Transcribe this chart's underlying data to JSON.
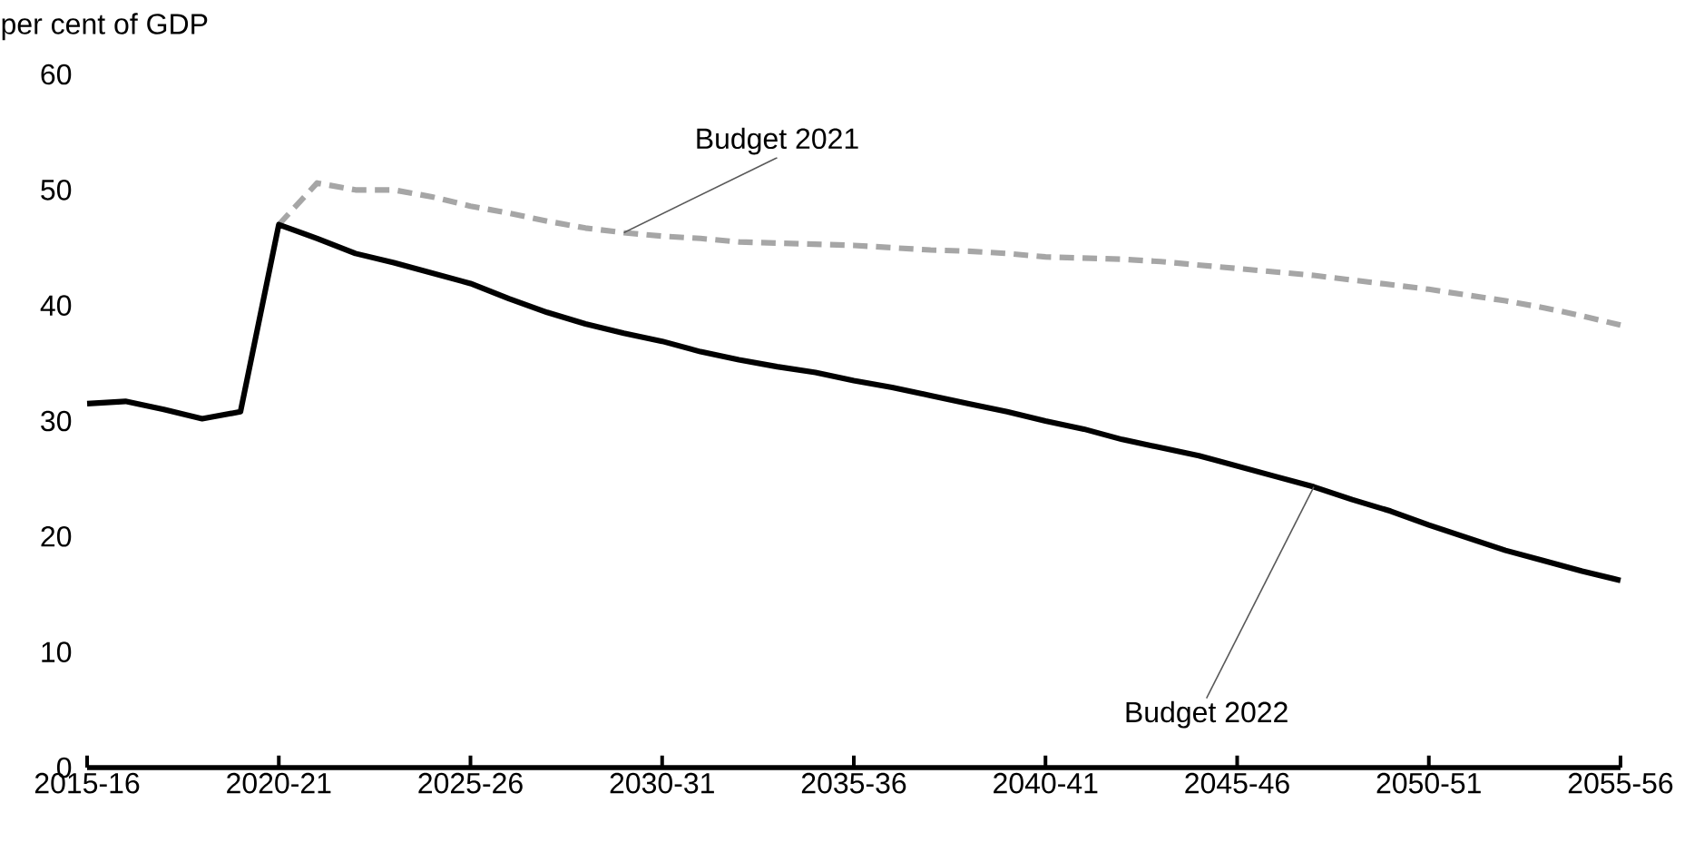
{
  "chart_data": {
    "type": "line",
    "ylabel": "per cent of GDP",
    "categories": [
      "2015-16",
      null,
      null,
      null,
      null,
      "2020-21",
      null,
      null,
      null,
      null,
      "2025-26",
      null,
      null,
      null,
      null,
      "2030-31",
      null,
      null,
      null,
      null,
      "2035-36",
      null,
      null,
      null,
      null,
      "2040-41",
      null,
      null,
      null,
      null,
      "2045-46",
      null,
      null,
      null,
      null,
      "2050-51",
      null,
      null,
      null,
      null,
      "2055-56"
    ],
    "ylim": [
      0,
      60
    ],
    "yticks": [
      0,
      10,
      20,
      30,
      40,
      50,
      60
    ],
    "grid": false,
    "marker": "none",
    "series": [
      {
        "name": "Budget 2021",
        "color": "#a6a6a6",
        "line_style": "dashed",
        "values": [
          null,
          null,
          null,
          null,
          null,
          47.0,
          50.6,
          50.0,
          50.0,
          49.4,
          48.6,
          48.0,
          47.3,
          46.7,
          46.3,
          46.0,
          45.8,
          45.5,
          45.4,
          45.3,
          45.2,
          45.0,
          44.8,
          44.7,
          44.5,
          44.2,
          44.1,
          44.0,
          43.8,
          43.5,
          43.2,
          42.9,
          42.6,
          42.2,
          41.8,
          41.4,
          40.9,
          40.4,
          39.8,
          39.1,
          38.3
        ]
      },
      {
        "name": "Budget 2022",
        "color": "#000000",
        "line_style": "solid",
        "values": [
          31.5,
          31.7,
          31.0,
          30.2,
          30.8,
          47.0,
          45.8,
          44.5,
          43.7,
          42.8,
          41.9,
          40.6,
          39.4,
          38.4,
          37.6,
          36.9,
          36.0,
          35.3,
          34.7,
          34.2,
          33.5,
          32.9,
          32.2,
          31.5,
          30.8,
          30.0,
          29.3,
          28.4,
          27.7,
          27.0,
          26.1,
          25.2,
          24.3,
          23.2,
          22.2,
          21.0,
          19.9,
          18.8,
          17.9,
          17.0,
          16.2
        ]
      }
    ]
  }
}
